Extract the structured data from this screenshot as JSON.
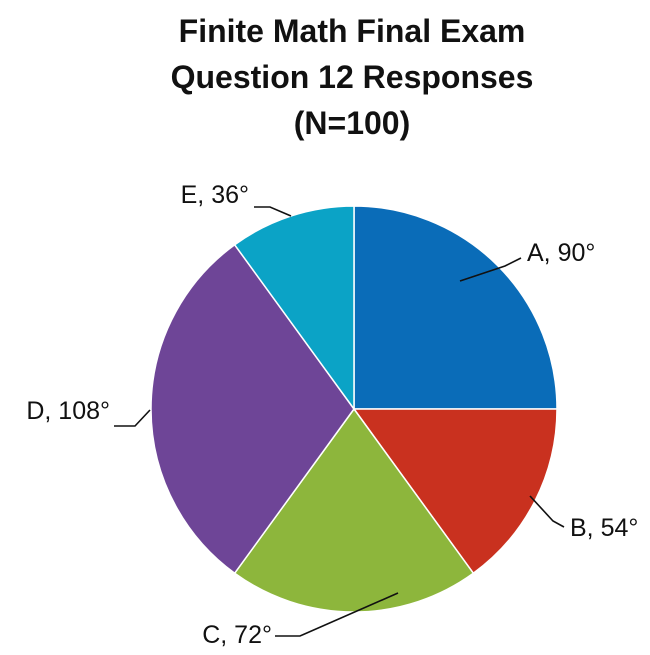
{
  "chart_data": {
    "type": "pie",
    "title": [
      "Finite Math Final Exam",
      "Question 12 Responses",
      "(N=100)"
    ],
    "slices": [
      {
        "category": "A",
        "degrees": 90,
        "label": "A, 90°",
        "color": "#0A6CB8"
      },
      {
        "category": "B",
        "degrees": 54,
        "label": "B, 54°",
        "color": "#C9311F"
      },
      {
        "category": "C",
        "degrees": 72,
        "label": "C, 72°",
        "color": "#8DB63C"
      },
      {
        "category": "D",
        "degrees": 108,
        "label": "D, 108°",
        "color": "#6E4597"
      },
      {
        "category": "E",
        "degrees": 36,
        "label": "E, 36°",
        "color": "#0BA3C6"
      }
    ],
    "start_angle": "12 o'clock",
    "direction": "clockwise",
    "legend": "none"
  }
}
